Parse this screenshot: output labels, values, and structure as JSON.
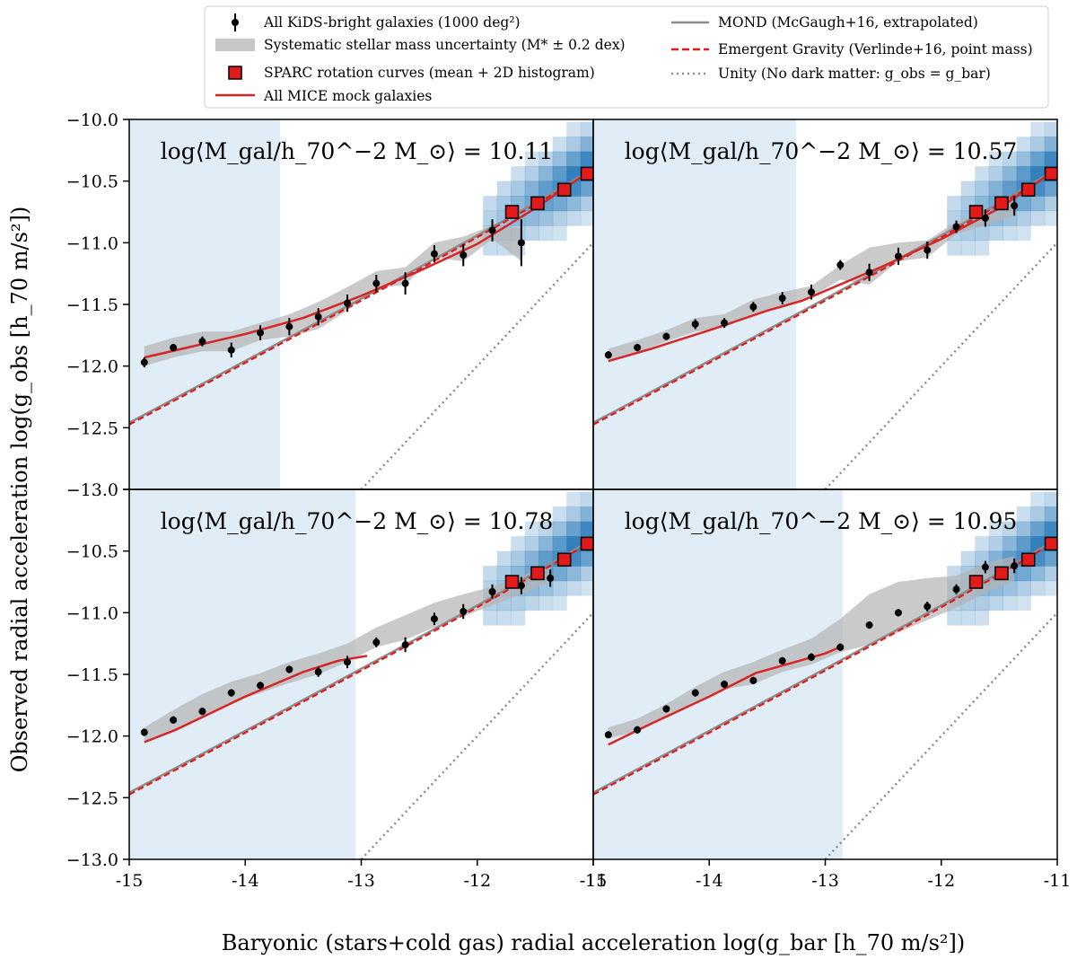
{
  "chart_data": {
    "type": "scatter",
    "layout": "2x2",
    "xlabel": "Baryonic (stars+cold gas) radial acceleration log(g_bar [h_70 m/s²])",
    "ylabel": "Observed radial acceleration log(g_obs [h_70 m/s²])",
    "xlim": [
      -15,
      -11
    ],
    "ylim": [
      -13.0,
      -10.0
    ],
    "x_ticks": [
      -15,
      -14,
      -13,
      -12,
      -11
    ],
    "x_tick_labels": [
      "-15",
      "-14",
      "-13",
      "-12",
      "-11"
    ],
    "x_tick_labels_right": [
      "-15",
      "-14",
      "-13",
      "-12",
      "-11"
    ],
    "y_ticks": [
      -13.0,
      -12.5,
      -12.0,
      -11.5,
      -11.0,
      -10.5,
      -10.0
    ],
    "y_tick_labels": [
      "−13.0",
      "−12.5",
      "−12.0",
      "−11.5",
      "−11.0",
      "−10.5",
      "−10.0"
    ],
    "legend": {
      "position": "top",
      "entries": [
        {
          "label": "All KiDS-bright galaxies (1000 deg²)",
          "marker": "errorbar-point",
          "color": "#000000"
        },
        {
          "label": "Systematic stellar mass uncertainty (M* ± 0.2 dex)",
          "marker": "band",
          "color": "#c8c8c8"
        },
        {
          "label": "SPARC rotation curves (mean + 2D histogram)",
          "marker": "square",
          "color": "#e31a1c"
        },
        {
          "label": "All MICE mock galaxies",
          "marker": "line",
          "color": "#d62728"
        },
        {
          "label": "MOND (McGaugh+16, extrapolated)",
          "marker": "line",
          "color": "#808080"
        },
        {
          "label": "Emergent Gravity (Verlinde+16, point mass)",
          "marker": "dashed",
          "color": "#e31a1c"
        },
        {
          "label": "Unity (No dark matter: g_obs = g_bar)",
          "marker": "dotted",
          "color": "#808080"
        }
      ]
    },
    "colors": {
      "kids": "#000000",
      "band": "#b4b4b4",
      "sparc": "#e31a1c",
      "mice": "#d62728",
      "mond": "#8c8c8c",
      "eg": "#e31a1c",
      "unity": "#8c8c8c",
      "shade": "#d6e7f3",
      "hist": "#2b7bba"
    },
    "panels": [
      {
        "label": "log⟨M_gal/h_70^−2 M_⊙⟩ = 10.11",
        "label_value": "10.11",
        "shade_xmax": -13.7,
        "kids": {
          "x": [
            -14.87,
            -14.62,
            -14.37,
            -14.12,
            -13.87,
            -13.62,
            -13.37,
            -13.12,
            -12.87,
            -12.62,
            -12.37,
            -12.12,
            -11.87,
            -11.62
          ],
          "y": [
            -11.97,
            -11.85,
            -11.8,
            -11.87,
            -11.73,
            -11.68,
            -11.6,
            -11.49,
            -11.33,
            -11.33,
            -11.09,
            -11.1,
            -10.9,
            -11.0
          ],
          "err": [
            0.04,
            0.03,
            0.04,
            0.06,
            0.06,
            0.07,
            0.07,
            0.07,
            0.07,
            0.09,
            0.07,
            0.09,
            0.09,
            0.19
          ]
        },
        "band": {
          "x": [
            -14.87,
            -14.62,
            -14.37,
            -14.12,
            -13.87,
            -13.62,
            -13.37,
            -13.12,
            -12.87,
            -12.62,
            -12.37,
            -12.12,
            -11.87,
            -11.62
          ],
          "y_lo": [
            -12.0,
            -11.93,
            -11.88,
            -11.88,
            -11.79,
            -11.76,
            -11.7,
            -11.55,
            -11.37,
            -11.34,
            -11.12,
            -11.15,
            -10.97,
            -11.15
          ],
          "y_hi": [
            -11.84,
            -11.77,
            -11.72,
            -11.72,
            -11.65,
            -11.58,
            -11.48,
            -11.36,
            -11.23,
            -11.2,
            -11.0,
            -10.95,
            -10.86,
            -10.88
          ]
        },
        "mice": {
          "x": [
            -14.87,
            -14.5,
            -14.0,
            -13.5,
            -13.0,
            -12.5,
            -12.0,
            -11.5,
            -11.0
          ],
          "y": [
            -11.93,
            -11.85,
            -11.74,
            -11.61,
            -11.43,
            -11.23,
            -11.01,
            -10.72,
            -10.4
          ]
        }
      },
      {
        "label": "log⟨M_gal/h_70^−2 M_⊙⟩ = 10.57",
        "label_value": "10.57",
        "shade_xmax": -13.25,
        "kids": {
          "x": [
            -14.87,
            -14.62,
            -14.37,
            -14.12,
            -13.87,
            -13.62,
            -13.37,
            -13.12,
            -12.87,
            -12.62,
            -12.37,
            -12.12,
            -11.87,
            -11.62,
            -11.37
          ],
          "y": [
            -11.91,
            -11.85,
            -11.76,
            -11.66,
            -11.65,
            -11.52,
            -11.45,
            -11.4,
            -11.18,
            -11.24,
            -11.11,
            -11.06,
            -10.87,
            -10.8,
            -10.7
          ],
          "err": [
            0.03,
            0.03,
            0.03,
            0.04,
            0.04,
            0.04,
            0.05,
            0.06,
            0.04,
            0.07,
            0.07,
            0.07,
            0.05,
            0.07,
            0.08
          ]
        },
        "band": {
          "x": [
            -14.87,
            -14.62,
            -14.37,
            -14.12,
            -13.87,
            -13.62,
            -13.37,
            -13.12,
            -12.87,
            -12.62,
            -12.37,
            -12.12,
            -11.87,
            -11.62,
            -11.37
          ],
          "y_lo": [
            -11.96,
            -11.89,
            -11.8,
            -11.72,
            -11.69,
            -11.58,
            -11.53,
            -11.44,
            -11.3,
            -11.34,
            -11.15,
            -11.12,
            -10.93,
            -10.86,
            -10.78
          ],
          "y_hi": [
            -11.86,
            -11.79,
            -11.71,
            -11.61,
            -11.58,
            -11.46,
            -11.4,
            -11.35,
            -11.18,
            -11.04,
            -11.0,
            -10.98,
            -10.83,
            -10.76,
            -10.65
          ]
        },
        "mice": {
          "x": [
            -14.87,
            -14.5,
            -14.0,
            -13.5,
            -13.2,
            -12.5,
            -12.0,
            -11.5,
            -11.0
          ],
          "y": [
            -11.96,
            -11.86,
            -11.71,
            -11.55,
            -11.47,
            -11.19,
            -10.97,
            -10.72,
            -10.4
          ]
        }
      },
      {
        "label": "log⟨M_gal/h_70^−2 M_⊙⟩ = 10.78",
        "label_value": "10.78",
        "shade_xmax": -13.05,
        "kids": {
          "x": [
            -14.87,
            -14.62,
            -14.37,
            -14.12,
            -13.87,
            -13.62,
            -13.37,
            -13.12,
            -12.87,
            -12.62,
            -12.37,
            -12.12,
            -11.87,
            -11.62,
            -11.37
          ],
          "y": [
            -11.97,
            -11.87,
            -11.8,
            -11.65,
            -11.59,
            -11.46,
            -11.48,
            -11.4,
            -11.24,
            -11.26,
            -11.05,
            -10.99,
            -10.83,
            -10.78,
            -10.72
          ],
          "err": [
            0.03,
            0.03,
            0.03,
            0.03,
            0.03,
            0.03,
            0.04,
            0.05,
            0.04,
            0.06,
            0.05,
            0.06,
            0.06,
            0.07,
            0.07
          ]
        },
        "band": {
          "x": [
            -14.87,
            -14.62,
            -14.37,
            -14.12,
            -13.87,
            -13.62,
            -13.37,
            -13.12,
            -12.87,
            -12.62,
            -12.37,
            -12.12,
            -11.87,
            -11.62,
            -11.37
          ],
          "y_lo": [
            -12.05,
            -11.96,
            -11.84,
            -11.73,
            -11.65,
            -11.57,
            -11.5,
            -11.4,
            -11.28,
            -11.22,
            -11.12,
            -11.03,
            -10.94,
            -10.85,
            -10.75
          ],
          "y_hi": [
            -11.93,
            -11.79,
            -11.66,
            -11.56,
            -11.49,
            -11.4,
            -11.33,
            -11.25,
            -11.12,
            -11.02,
            -10.92,
            -10.85,
            -10.79,
            -10.7,
            -10.62
          ]
        },
        "mice": {
          "x": [
            -14.87,
            -14.6,
            -14.0,
            -13.5,
            -13.2,
            -12.95
          ],
          "y": [
            -12.05,
            -11.95,
            -11.68,
            -11.48,
            -11.39,
            -11.35
          ]
        }
      },
      {
        "label": "log⟨M_gal/h_70^−2 M_⊙⟩ = 10.95",
        "label_value": "10.95",
        "shade_xmax": -12.85,
        "kids": {
          "x": [
            -14.87,
            -14.62,
            -14.37,
            -14.12,
            -13.87,
            -13.62,
            -13.37,
            -13.12,
            -12.87,
            -12.62,
            -12.37,
            -12.12,
            -11.87,
            -11.62,
            -11.37
          ],
          "y": [
            -11.99,
            -11.95,
            -11.78,
            -11.65,
            -11.58,
            -11.55,
            -11.39,
            -11.36,
            -11.28,
            -11.1,
            -11.0,
            -10.95,
            -10.81,
            -10.63,
            -10.62
          ],
          "err": [
            0.02,
            0.03,
            0.03,
            0.03,
            0.03,
            0.03,
            0.03,
            0.03,
            0.03,
            0.03,
            0.03,
            0.04,
            0.04,
            0.05,
            0.06
          ]
        },
        "band": {
          "x": [
            -14.87,
            -14.62,
            -14.37,
            -14.12,
            -13.87,
            -13.62,
            -13.37,
            -13.12,
            -12.87,
            -12.62,
            -12.37,
            -12.12,
            -11.87,
            -11.62,
            -11.37
          ],
          "y_lo": [
            -12.02,
            -11.96,
            -11.84,
            -11.72,
            -11.62,
            -11.58,
            -11.48,
            -11.42,
            -11.32,
            -11.26,
            -11.16,
            -11.06,
            -10.96,
            -10.84,
            -10.74
          ],
          "y_hi": [
            -11.93,
            -11.86,
            -11.74,
            -11.6,
            -11.48,
            -11.4,
            -11.3,
            -11.21,
            -11.05,
            -10.85,
            -10.75,
            -10.72,
            -10.7,
            -10.6,
            -10.54
          ]
        },
        "mice": {
          "x": [
            -14.87,
            -14.5,
            -14.0,
            -13.6,
            -13.0,
            -12.85
          ],
          "y": [
            -12.07,
            -11.9,
            -11.68,
            -11.49,
            -11.33,
            -11.27
          ]
        }
      }
    ],
    "sparc": {
      "x": [
        -11.7,
        -11.48,
        -11.25,
        -11.05
      ],
      "y": [
        -10.75,
        -10.68,
        -10.57,
        -10.44
      ]
    }
  }
}
